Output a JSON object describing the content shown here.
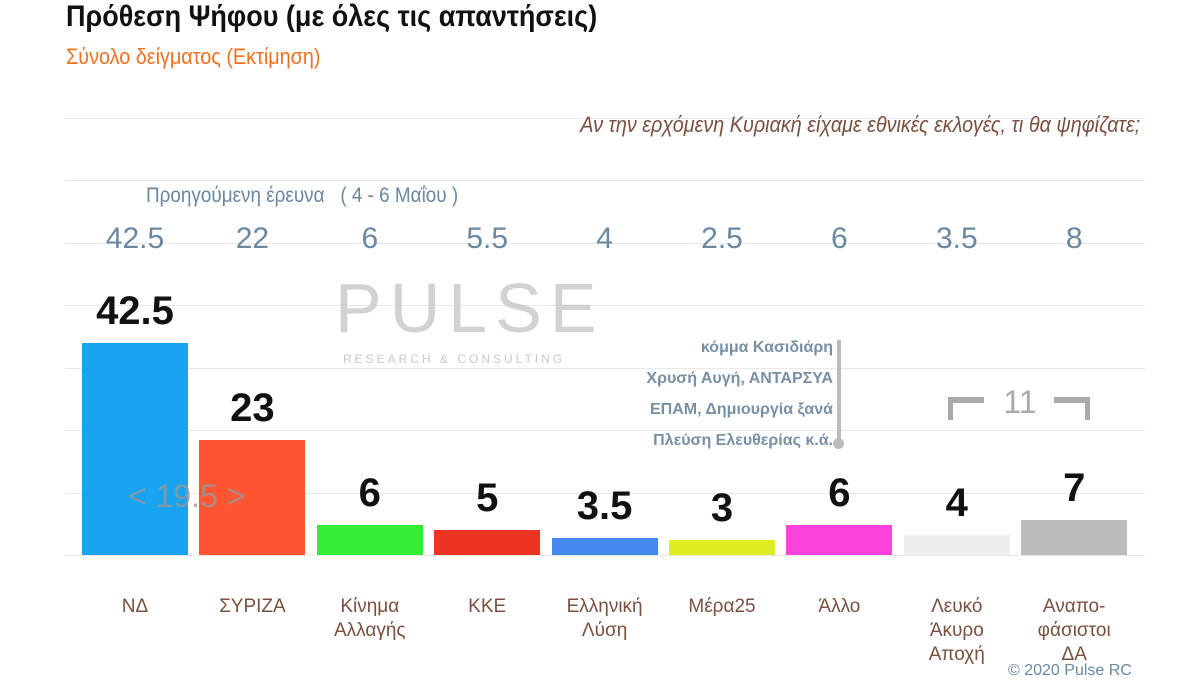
{
  "header": {
    "title": "Πρόθεση Ψήφου (με όλες τις απαντήσεις)",
    "subtitle": "Σύνολο δείγματος   (Εκτίμηση)",
    "question": "Αν την ερχόμενη Κυριακή είχαμε εθνικές εκλογές, τι θα ψηφίζατε;"
  },
  "watermark": {
    "brand": "PULSE",
    "tagline": "RESEARCH & CONSULTING"
  },
  "footer": "© 2020 Pulse RC",
  "chart_data": {
    "type": "bar",
    "title": "Πρόθεση Ψήφου (με όλες τις απαντήσεις)",
    "previous_label": "Προηγούμενη έρευνα   ( 4 - 6 Μαΐου )",
    "categories": [
      "ΝΔ",
      "ΣΥΡΙΖΑ",
      "Κίνημα\nΑλλαγής",
      "ΚΚΕ",
      "Ελληνική\nΛύση",
      "Μέρα25",
      "Άλλο",
      "Λευκό\nΆκυρο\nΑποχή",
      "Αναπο-\nφάσιστοι\nΔΑ"
    ],
    "series": [
      {
        "values": [
          42.5,
          23,
          6,
          5,
          3.5,
          3,
          6,
          4,
          7
        ],
        "labels": [
          "42.5",
          "23",
          "6",
          "5",
          "3.5",
          "3",
          "6",
          "4",
          "7"
        ]
      },
      {
        "name": "Προηγούμενη έρευνα",
        "values": [
          42.5,
          22,
          6,
          5.5,
          4,
          2.5,
          6,
          3.5,
          8
        ],
        "labels": [
          "42.5",
          "22",
          "6",
          "5.5",
          "4",
          "2.5",
          "6",
          "3.5",
          "8"
        ]
      }
    ],
    "colors": [
      "#1aa3f0",
      "#ff5533",
      "#33ee33",
      "#ee3322",
      "#4488ee",
      "#dded22",
      "#ff44dd",
      "#eeeeee",
      "#bbbbbb"
    ],
    "ylim": [
      0,
      87.5
    ],
    "grid": true,
    "annotations": {
      "gap": "< 19.5 >",
      "other_note": [
        "κόμμα Κασιδιάρη",
        "Χρυσή Αυγή, ΑΝΤΑΡΣΥΑ",
        "ΕΠΑΜ, Δημιουργία ξανά",
        "Πλεύση Ελευθερίας  κ.ά."
      ],
      "bracket_sum": "11"
    }
  }
}
